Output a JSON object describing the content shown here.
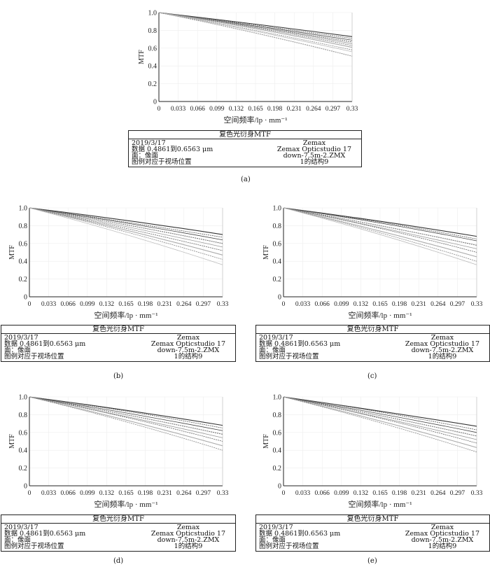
{
  "legend": {
    "title": "复色光衍身MTF",
    "left": [
      "2019/3/17",
      "数据 0.4861到0.6563 μm",
      "面：像面",
      "图例对应于视场位置"
    ],
    "right": [
      "Zemax",
      "Zemax Opticstudio 17",
      "down-7.5m-2.ZMX",
      "1的结构9"
    ]
  },
  "chart_data": [
    {
      "type": "line",
      "label": "(a)",
      "xlabel": "空间频率/lp · mm⁻¹",
      "ylabel": "MTF",
      "xlim": [
        0,
        0.33
      ],
      "ylim": [
        0,
        1
      ],
      "xticks": [
        "0",
        "0.033",
        "0.066",
        "0.099",
        "0.132",
        "0.165",
        "0.198",
        "0.231",
        "0.264",
        "0.297",
        "0.33"
      ],
      "yticks": [
        "0",
        "0.2",
        "0.4",
        "0.6",
        "0.8",
        "1.0"
      ],
      "x": [
        0,
        0.165,
        0.33
      ],
      "series": [
        [
          1,
          0.87,
          0.73
        ],
        [
          1,
          0.86,
          0.71
        ],
        [
          1,
          0.85,
          0.69
        ],
        [
          1,
          0.84,
          0.67
        ],
        [
          1,
          0.84,
          0.65
        ],
        [
          1,
          0.83,
          0.63
        ],
        [
          1,
          0.82,
          0.61
        ],
        [
          1,
          0.8,
          0.58
        ],
        [
          1,
          0.79,
          0.56
        ],
        [
          1,
          0.77,
          0.51
        ]
      ]
    },
    {
      "type": "line",
      "label": "(b)",
      "xlabel": "空间频率/lp · mm⁻¹",
      "ylabel": "MTF",
      "xlim": [
        0,
        0.33
      ],
      "ylim": [
        0,
        1
      ],
      "xticks": [
        "0",
        "0.033",
        "0.066",
        "0.099",
        "0.132",
        "0.165",
        "0.198",
        "0.231",
        "0.264",
        "0.297",
        "0.33"
      ],
      "yticks": [
        "0",
        "0.2",
        "0.4",
        "0.6",
        "0.8",
        "1.0"
      ],
      "x": [
        0,
        0.165,
        0.33
      ],
      "series": [
        [
          1,
          0.86,
          0.7
        ],
        [
          1,
          0.84,
          0.67
        ],
        [
          1,
          0.83,
          0.64
        ],
        [
          1,
          0.81,
          0.6
        ],
        [
          1,
          0.79,
          0.56
        ],
        [
          1,
          0.77,
          0.52
        ],
        [
          1,
          0.75,
          0.47
        ],
        [
          1,
          0.73,
          0.42
        ],
        [
          1,
          0.7,
          0.36
        ]
      ]
    },
    {
      "type": "line",
      "label": "(c)",
      "xlabel": "空间频率/lp · mm⁻¹",
      "ylabel": "MTF",
      "xlim": [
        0,
        0.33
      ],
      "ylim": [
        0,
        1
      ],
      "xticks": [
        "0",
        "0.033",
        "0.066",
        "0.099",
        "0.132",
        "0.165",
        "0.198",
        "0.231",
        "0.264",
        "0.297",
        "0.33"
      ],
      "yticks": [
        "0",
        "0.2",
        "0.4",
        "0.6",
        "0.8",
        "1.0"
      ],
      "x": [
        0,
        0.165,
        0.33
      ],
      "series": [
        [
          1,
          0.85,
          0.68
        ],
        [
          1,
          0.84,
          0.65
        ],
        [
          1,
          0.83,
          0.63
        ],
        [
          1,
          0.8,
          0.58
        ],
        [
          1,
          0.78,
          0.54
        ],
        [
          1,
          0.77,
          0.5
        ],
        [
          1,
          0.74,
          0.45
        ],
        [
          1,
          0.72,
          0.4
        ],
        [
          1,
          0.7,
          0.36
        ]
      ]
    },
    {
      "type": "line",
      "label": "(d)",
      "xlabel": "空间频率/lp · mm⁻¹",
      "ylabel": "MTF",
      "xlim": [
        0,
        0.33
      ],
      "ylim": [
        0,
        1
      ],
      "xticks": [
        "0",
        "0.033",
        "0.066",
        "0.099",
        "0.132",
        "0.165",
        "0.198",
        "0.231",
        "0.264",
        "0.297",
        "0.33"
      ],
      "yticks": [
        "0",
        "0.2",
        "0.4",
        "0.6",
        "0.8",
        "1.0"
      ],
      "x": [
        0,
        0.165,
        0.33
      ],
      "series": [
        [
          1,
          0.85,
          0.68
        ],
        [
          1,
          0.84,
          0.65
        ],
        [
          1,
          0.82,
          0.62
        ],
        [
          1,
          0.8,
          0.58
        ],
        [
          1,
          0.78,
          0.54
        ],
        [
          1,
          0.77,
          0.5
        ],
        [
          1,
          0.74,
          0.45
        ],
        [
          1,
          0.72,
          0.4
        ]
      ]
    },
    {
      "type": "line",
      "label": "(e)",
      "xlabel": "空间频率/lp · mm⁻¹",
      "ylabel": "MTF",
      "xlim": [
        0,
        0.33
      ],
      "ylim": [
        0,
        1
      ],
      "xticks": [
        "0",
        "0.033",
        "0.066",
        "0.099",
        "0.132",
        "0.165",
        "0.198",
        "0.231",
        "0.264",
        "0.297",
        "0.33"
      ],
      "yticks": [
        "0",
        "0.2",
        "0.4",
        "0.6",
        "0.8",
        "1.0"
      ],
      "x": [
        0,
        0.165,
        0.33
      ],
      "series": [
        [
          1,
          0.84,
          0.67
        ],
        [
          1,
          0.83,
          0.63
        ],
        [
          1,
          0.81,
          0.6
        ],
        [
          1,
          0.79,
          0.56
        ],
        [
          1,
          0.77,
          0.52
        ],
        [
          1,
          0.76,
          0.48
        ],
        [
          1,
          0.73,
          0.43
        ],
        [
          1,
          0.71,
          0.38
        ]
      ]
    }
  ]
}
